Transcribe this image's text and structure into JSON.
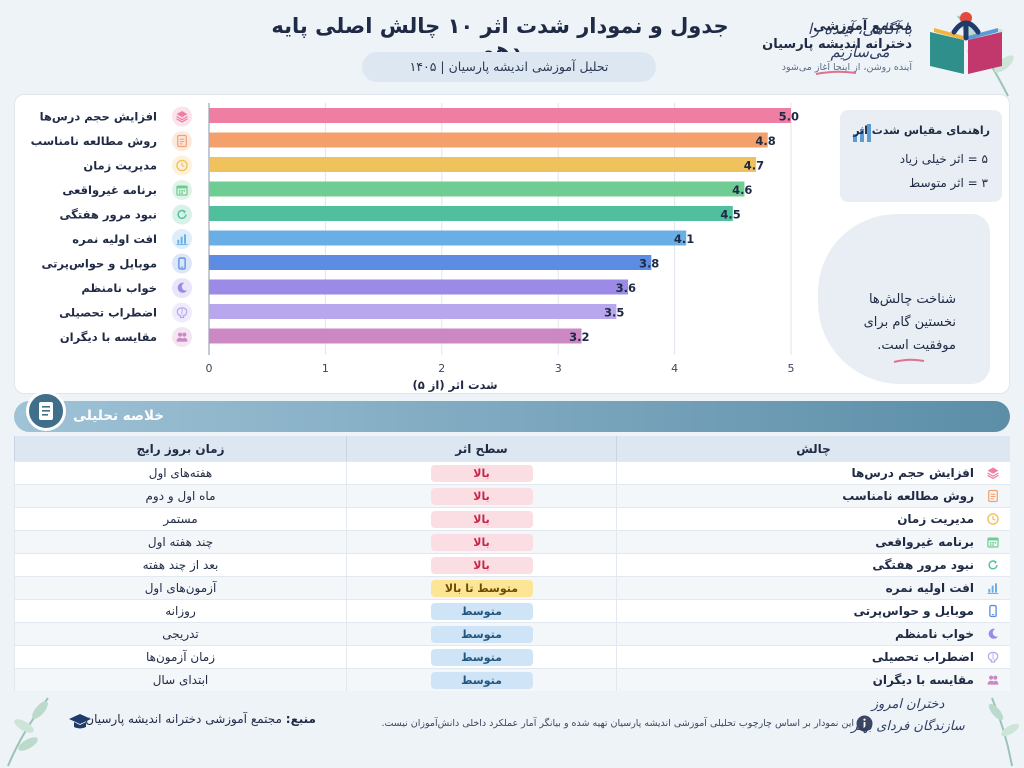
{
  "header": {
    "org_name": "مجتمع آموزشی دخترانه اندیشه پارسیان",
    "org_tagline": "آینده روشن، از اینجا آغاز می‌شود",
    "title": "جدول و نمودار شدت اثر ۱۰ چالش اصلی پایه دهم",
    "subtitle": "تحلیل آموزشی اندیشه پارسیان   |   ۱۴۰۵",
    "tagline": "با آگاهی، آینده را می‌سازیم"
  },
  "legend": {
    "title": "راهنمای مقیاس شدت اثر",
    "high": "۵ = اثر خیلی زیاد",
    "mid": "۳ = اثر متوسط"
  },
  "quote": "شناخت چالش‌ها نخستین گام برای موفقیت است.",
  "chart_data": {
    "type": "bar",
    "orientation": "horizontal",
    "categories": [
      "افزایش حجم درس‌ها",
      "روش مطالعه نامناسب",
      "مدیریت زمان",
      "برنامه غیرواقعی",
      "نبود مرور هفتگی",
      "افت اولیه نمره",
      "موبایل و حواس‌پرتی",
      "خواب نامنظم",
      "اضطراب تحصیلی",
      "مقایسه با دیگران"
    ],
    "values": [
      5.0,
      4.8,
      4.7,
      4.6,
      4.5,
      4.1,
      3.8,
      3.6,
      3.5,
      3.2
    ],
    "value_labels": [
      "5.0",
      "4.8",
      "4.7",
      "4.6",
      "4.5",
      "4.1",
      "3.8",
      "3.6",
      "3.5",
      "3.2"
    ],
    "colors": [
      "#ee7fa3",
      "#f3a06d",
      "#f0c25e",
      "#6fcc92",
      "#4fbf9d",
      "#6aaee6",
      "#5c8de3",
      "#9b8ae6",
      "#b9a7ee",
      "#cc88c2"
    ],
    "icons": [
      "layers-icon",
      "document-icon",
      "clock-icon",
      "calendar-icon",
      "refresh-icon",
      "bar-chart-icon",
      "mobile-icon",
      "moon-icon",
      "brain-icon",
      "people-icon"
    ],
    "xlabel": "شدت اثر (از ۵)",
    "ylabel": "",
    "xlim": [
      0,
      5
    ],
    "xticks": [
      "0",
      "1",
      "2",
      "3",
      "4",
      "5"
    ],
    "grid": true
  },
  "summary": {
    "title": "خلاصه تحلیلی",
    "columns": [
      "چالش",
      "سطح اثر",
      "زمان بروز رایج"
    ],
    "rows": [
      {
        "challenge": "افزایش حجم درس‌ها",
        "level": "بالا",
        "level_kind": "high",
        "time": "هفته‌های اول"
      },
      {
        "challenge": "روش مطالعه نامناسب",
        "level": "بالا",
        "level_kind": "high",
        "time": "ماه اول و دوم"
      },
      {
        "challenge": "مدیریت زمان",
        "level": "بالا",
        "level_kind": "high",
        "time": "مستمر"
      },
      {
        "challenge": "برنامه غیرواقعی",
        "level": "بالا",
        "level_kind": "high",
        "time": "چند هفته اول"
      },
      {
        "challenge": "نبود مرور هفتگی",
        "level": "بالا",
        "level_kind": "high",
        "time": "بعد از چند هفته"
      },
      {
        "challenge": "افت اولیه نمره",
        "level": "متوسط تا بالا",
        "level_kind": "midhigh",
        "time": "آزمون‌های اول"
      },
      {
        "challenge": "موبایل و حواس‌پرتی",
        "level": "متوسط",
        "level_kind": "mid",
        "time": "روزانه"
      },
      {
        "challenge": "خواب نامنظم",
        "level": "متوسط",
        "level_kind": "mid",
        "time": "تدریجی"
      },
      {
        "challenge": "اضطراب تحصیلی",
        "level": "متوسط",
        "level_kind": "mid",
        "time": "زمان آزمون‌ها"
      },
      {
        "challenge": "مقایسه با دیگران",
        "level": "متوسط",
        "level_kind": "mid",
        "time": "ابتدای سال"
      }
    ]
  },
  "footer": {
    "source_label": "منبع:",
    "source_value": "مجتمع آموزشی دخترانه اندیشه پارسیان",
    "note": "این نمودار بر اساس چارچوب تحلیلی آموزشی اندیشه پارسیان تهیه شده و بیانگر آمار عملکرد داخلی دانش‌آموزان نیست.",
    "slogan": "دختران امروز سازندگان فردای بهتر"
  }
}
